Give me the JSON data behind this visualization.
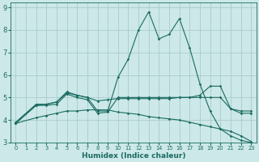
{
  "xlabel": "Humidex (Indice chaleur)",
  "background_color": "#cce8e8",
  "grid_color": "#aacccc",
  "line_color": "#1a6b60",
  "xlim": [
    -0.5,
    23.5
  ],
  "ylim": [
    3,
    9.2
  ],
  "yticks": [
    3,
    4,
    5,
    6,
    7,
    8,
    9
  ],
  "xticks": [
    0,
    1,
    2,
    3,
    4,
    5,
    6,
    7,
    8,
    9,
    10,
    11,
    12,
    13,
    14,
    15,
    16,
    17,
    18,
    19,
    20,
    21,
    22,
    23
  ],
  "lines": [
    {
      "x": [
        0,
        2,
        3,
        4,
        5,
        6,
        7,
        8,
        9,
        10,
        11,
        12,
        13,
        14,
        15,
        16,
        17,
        18,
        19,
        20,
        21,
        22,
        23
      ],
      "y": [
        3.9,
        4.7,
        4.7,
        4.8,
        5.2,
        5.1,
        5.0,
        4.4,
        4.4,
        5.9,
        6.7,
        8.0,
        8.8,
        7.6,
        7.8,
        8.5,
        7.2,
        5.6,
        4.4,
        3.6,
        3.3,
        3.1,
        3.0
      ]
    },
    {
      "x": [
        0,
        2,
        3,
        4,
        5,
        6,
        7,
        8,
        9,
        10,
        11,
        12,
        13,
        14,
        15,
        16,
        17,
        18,
        19,
        20,
        21,
        22,
        23
      ],
      "y": [
        3.85,
        4.65,
        4.65,
        4.7,
        5.15,
        5.0,
        4.9,
        4.3,
        4.35,
        5.0,
        5.0,
        5.0,
        5.0,
        5.0,
        5.0,
        5.0,
        5.0,
        5.0,
        5.0,
        5.0,
        4.5,
        4.4,
        4.4
      ]
    },
    {
      "x": [
        0,
        2,
        3,
        4,
        5,
        6,
        7,
        8,
        9,
        10,
        11,
        12,
        13,
        14,
        15,
        16,
        17,
        18,
        19,
        20,
        21,
        22,
        23
      ],
      "y": [
        3.85,
        4.65,
        4.7,
        4.8,
        5.25,
        5.1,
        5.0,
        4.85,
        4.9,
        4.95,
        4.95,
        4.95,
        4.95,
        4.95,
        4.95,
        5.0,
        5.0,
        5.1,
        5.5,
        5.5,
        4.5,
        4.3,
        4.3
      ]
    },
    {
      "x": [
        0,
        2,
        3,
        4,
        5,
        6,
        7,
        8,
        9,
        10,
        11,
        12,
        13,
        14,
        15,
        16,
        17,
        18,
        19,
        20,
        21,
        22,
        23
      ],
      "y": [
        3.85,
        4.1,
        4.2,
        4.3,
        4.4,
        4.4,
        4.45,
        4.45,
        4.45,
        4.35,
        4.3,
        4.25,
        4.15,
        4.1,
        4.05,
        4.0,
        3.9,
        3.8,
        3.7,
        3.6,
        3.5,
        3.3,
        3.05
      ]
    }
  ]
}
